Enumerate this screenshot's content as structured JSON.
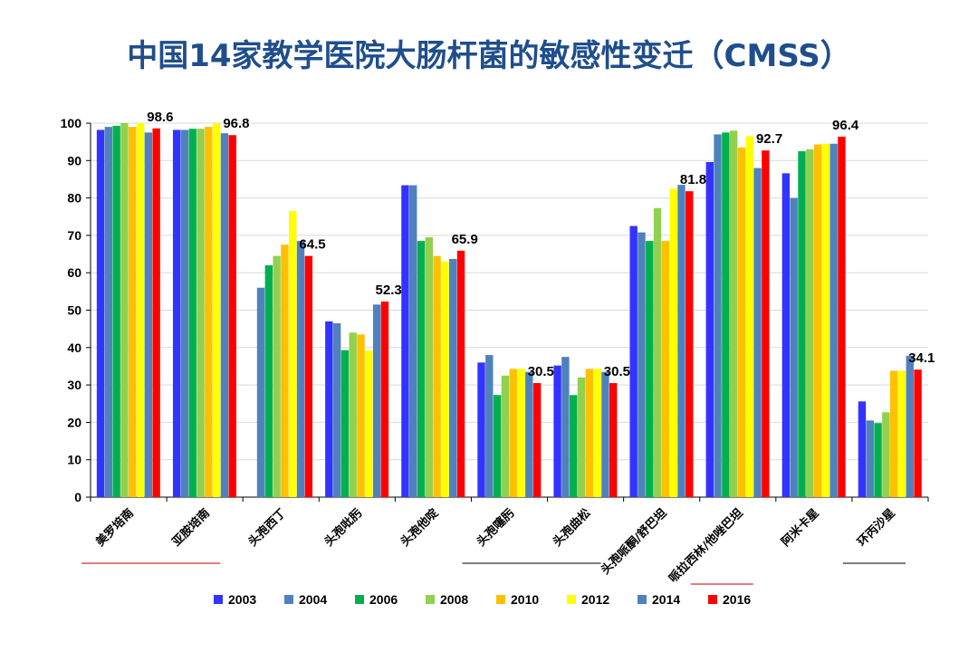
{
  "title": "中国14家教学医院大肠杆菌的敏感性变迁（CMSS）",
  "chart_data": {
    "type": "bar",
    "ylim": [
      0,
      100
    ],
    "yticks": [
      0,
      10,
      20,
      30,
      40,
      50,
      60,
      70,
      80,
      90,
      100
    ],
    "grid": true,
    "legend_position": "bottom",
    "categories": [
      "美罗培南",
      "亚胺培南",
      "头孢西丁",
      "头孢吡肟",
      "头孢他啶",
      "头孢噻肟",
      "头孢曲松",
      "头孢哌酮/舒巴坦",
      "哌拉西林/他唑巴坦",
      "阿米卡星",
      "环丙沙星"
    ],
    "series": [
      {
        "name": "2003",
        "color": "#3333ff",
        "values": [
          98.2,
          98.2,
          null,
          47.0,
          83.4,
          36.0,
          35.2,
          72.5,
          89.6,
          86.6,
          25.6
        ]
      },
      {
        "name": "2004",
        "color": "#4f81bd",
        "values": [
          99.0,
          98.2,
          56.0,
          46.5,
          83.4,
          38.0,
          37.5,
          70.8,
          97.0,
          80.0,
          20.5
        ]
      },
      {
        "name": "2006",
        "color": "#00b050",
        "values": [
          99.3,
          98.5,
          62.0,
          39.3,
          68.5,
          27.3,
          27.3,
          68.5,
          97.5,
          92.5,
          19.8
        ]
      },
      {
        "name": "2008",
        "color": "#92d050",
        "values": [
          100.0,
          98.5,
          64.5,
          44.0,
          69.5,
          32.5,
          32.0,
          77.3,
          98.0,
          93.0,
          22.7
        ]
      },
      {
        "name": "2010",
        "color": "#ffc000",
        "values": [
          99.0,
          99.0,
          67.5,
          43.5,
          64.5,
          34.3,
          34.3,
          68.5,
          93.5,
          94.3,
          33.8
        ]
      },
      {
        "name": "2012",
        "color": "#ffff00",
        "values": [
          100.0,
          100.0,
          76.5,
          39.2,
          63.0,
          34.3,
          34.3,
          82.5,
          96.5,
          94.5,
          33.8
        ]
      },
      {
        "name": "2014",
        "color": "#4f81bd",
        "values": [
          97.5,
          97.3,
          68.5,
          51.5,
          63.7,
          33.5,
          33.5,
          83.5,
          88.0,
          94.5,
          37.8
        ]
      },
      {
        "name": "2016",
        "color": "#ff0000",
        "values": [
          98.6,
          96.8,
          64.5,
          52.3,
          65.9,
          30.5,
          30.5,
          81.8,
          92.7,
          96.4,
          34.1
        ]
      }
    ],
    "data_labels": [
      "98.6",
      "96.8",
      "64.5",
      "52.3",
      "65.9",
      "30.5",
      "30.5",
      "81.8",
      "92.7",
      "96.4",
      "34.1"
    ],
    "underlines": [
      {
        "from_category": 0,
        "to_category": 1,
        "color": "#c00000"
      },
      {
        "from_category": 5,
        "to_category": 6,
        "color": "#000000"
      },
      {
        "from_category": 8,
        "to_category": 8,
        "color": "#c00000"
      },
      {
        "from_category": 10,
        "to_category": 10,
        "color": "#000000"
      }
    ]
  }
}
